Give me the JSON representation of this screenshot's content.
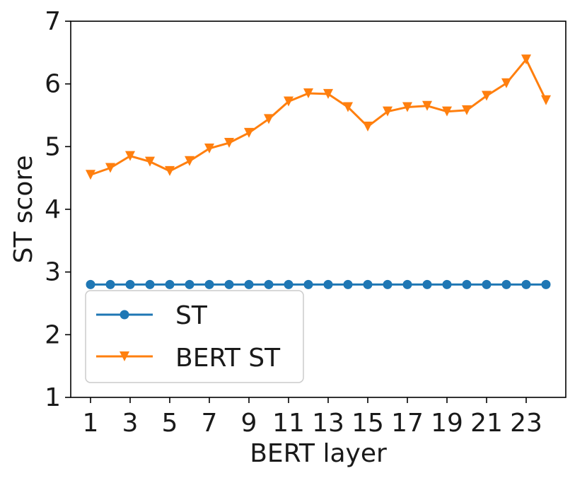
{
  "chart_data": {
    "type": "line",
    "xlabel": "BERT layer",
    "ylabel": "ST score",
    "xlim": [
      0,
      25
    ],
    "ylim": [
      1,
      7
    ],
    "xticks": [
      1,
      3,
      5,
      7,
      9,
      11,
      13,
      15,
      17,
      19,
      21,
      23
    ],
    "yticks": [
      1,
      2,
      3,
      4,
      5,
      6,
      7
    ],
    "grid": false,
    "legend_position": "lower-left",
    "x": [
      1,
      2,
      3,
      4,
      5,
      6,
      7,
      8,
      9,
      10,
      11,
      12,
      13,
      14,
      15,
      16,
      17,
      18,
      19,
      20,
      21,
      22,
      23,
      24
    ],
    "series": [
      {
        "name": "ST",
        "color": "#1f77b4",
        "marker": "circle",
        "values": [
          2.8,
          2.8,
          2.8,
          2.8,
          2.8,
          2.8,
          2.8,
          2.8,
          2.8,
          2.8,
          2.8,
          2.8,
          2.8,
          2.8,
          2.8,
          2.8,
          2.8,
          2.8,
          2.8,
          2.8,
          2.8,
          2.8,
          2.8,
          2.8
        ]
      },
      {
        "name": "BERT ST",
        "color": "#ff7f0e",
        "marker": "triangle-down",
        "values": [
          4.55,
          4.66,
          4.85,
          4.76,
          4.61,
          4.77,
          4.97,
          5.06,
          5.22,
          5.44,
          5.72,
          5.85,
          5.84,
          5.63,
          5.32,
          5.56,
          5.63,
          5.65,
          5.56,
          5.58,
          5.81,
          6.01,
          6.39,
          5.74
        ]
      }
    ]
  }
}
